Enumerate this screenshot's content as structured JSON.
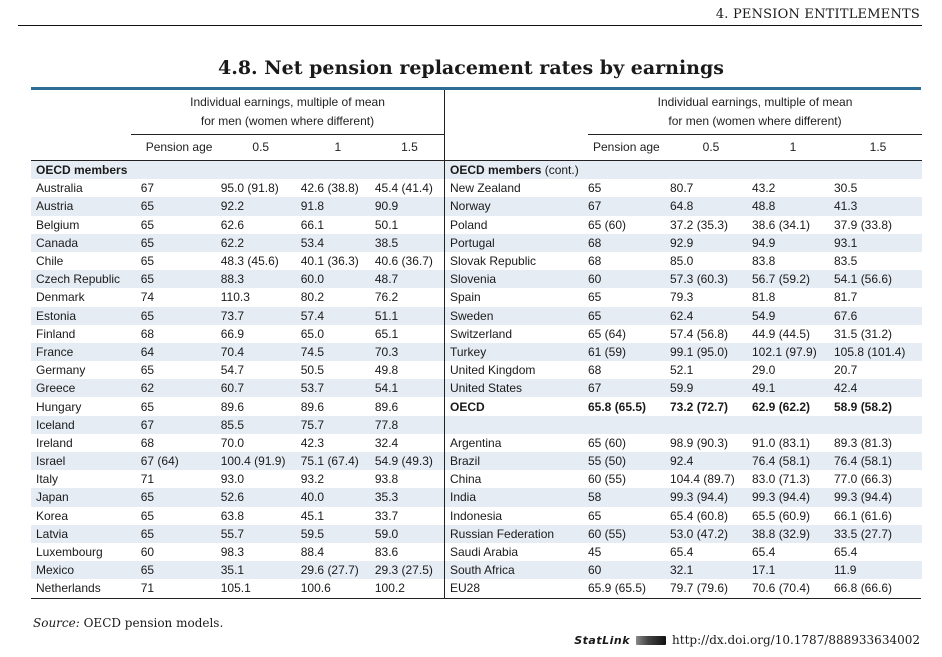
{
  "header": {
    "chapter": "4.  PENSION ENTITLEMENTS"
  },
  "title": "4.8.  Net pension replacement rates by earnings",
  "table": {
    "earnings_header_line1": "Individual earnings, multiple of mean",
    "earnings_header_line2": "for men (women where different)",
    "columns": [
      "Pension age",
      "0.5",
      "1",
      "1.5"
    ],
    "left": {
      "group": "OECD members",
      "rows": [
        [
          "Australia",
          "67",
          "95.0 (91.8)",
          "42.6 (38.8)",
          "45.4 (41.4)"
        ],
        [
          "Austria",
          "65",
          "92.2",
          "91.8",
          "90.9"
        ],
        [
          "Belgium",
          "65",
          "62.6",
          "66.1",
          "50.1"
        ],
        [
          "Canada",
          "65",
          "62.2",
          "53.4",
          "38.5"
        ],
        [
          "Chile",
          "65",
          "48.3 (45.6)",
          "40.1 (36.3)",
          "40.6 (36.7)"
        ],
        [
          "Czech Republic",
          "65",
          "88.3",
          "60.0",
          "48.7"
        ],
        [
          "Denmark",
          "74",
          "110.3",
          "80.2",
          "76.2"
        ],
        [
          "Estonia",
          "65",
          "73.7",
          "57.4",
          "51.1"
        ],
        [
          "Finland",
          "68",
          "66.9",
          "65.0",
          "65.1"
        ],
        [
          "France",
          "64",
          "70.4",
          "74.5",
          "70.3"
        ],
        [
          "Germany",
          "65",
          "54.7",
          "50.5",
          "49.8"
        ],
        [
          "Greece",
          "62",
          "60.7",
          "53.7",
          "54.1"
        ],
        [
          "Hungary",
          "65",
          "89.6",
          "89.6",
          "89.6"
        ],
        [
          "Iceland",
          "67",
          "85.5",
          "75.7",
          "77.8"
        ],
        [
          "Ireland",
          "68",
          "70.0",
          "42.3",
          "32.4"
        ],
        [
          "Israel",
          "67 (64)",
          "100.4 (91.9)",
          "75.1 (67.4)",
          "54.9 (49.3)"
        ],
        [
          "Italy",
          "71",
          "93.0",
          "93.2",
          "93.8"
        ],
        [
          "Japan",
          "65",
          "52.6",
          "40.0",
          "35.3"
        ],
        [
          "Korea",
          "65",
          "63.8",
          "45.1",
          "33.7"
        ],
        [
          "Latvia",
          "65",
          "55.7",
          "59.5",
          "59.0"
        ],
        [
          "Luxembourg",
          "60",
          "98.3",
          "88.4",
          "83.6"
        ],
        [
          "Mexico",
          "65",
          "35.1",
          "29.6 (27.7)",
          "29.3 (27.5)"
        ],
        [
          "Netherlands",
          "71",
          "105.1",
          "100.6",
          "100.2"
        ]
      ]
    },
    "right": {
      "group": "OECD members",
      "group_suffix": " (cont.)",
      "rows": [
        [
          "New Zealand",
          "65",
          "80.7",
          "43.2",
          "30.5"
        ],
        [
          "Norway",
          "67",
          "64.8",
          "48.8",
          "41.3"
        ],
        [
          "Poland",
          "65 (60)",
          "37.2 (35.3)",
          "38.6 (34.1)",
          "37.9 (33.8)"
        ],
        [
          "Portugal",
          "68",
          "92.9",
          "94.9",
          "93.1"
        ],
        [
          "Slovak Republic",
          "68",
          "85.0",
          "83.8",
          "83.5"
        ],
        [
          "Slovenia",
          "60",
          "57.3 (60.3)",
          "56.7 (59.2)",
          "54.1 (56.6)"
        ],
        [
          "Spain",
          "65",
          "79.3",
          "81.8",
          "81.7"
        ],
        [
          "Sweden",
          "65",
          "62.4",
          "54.9",
          "67.6"
        ],
        [
          "Switzerland",
          "65 (64)",
          "57.4 (56.8)",
          "44.9 (44.5)",
          "31.5 (31.2)"
        ],
        [
          "Turkey",
          "61 (59)",
          "99.1 (95.0)",
          "102.1 (97.9)",
          "105.8 (101.4)"
        ],
        [
          "United Kingdom",
          "68",
          "52.1",
          "29.0",
          "20.7"
        ],
        [
          "United States",
          "67",
          "59.9",
          "49.1",
          "42.4"
        ],
        [
          "OECD",
          "65.8 (65.5)",
          "73.2 (72.7)",
          "62.9 (62.2)",
          "58.9 (58.2)"
        ],
        [
          "",
          "",
          "",
          "",
          ""
        ],
        [
          "Argentina",
          "65 (60)",
          "98.9 (90.3)",
          "91.0 (83.1)",
          "89.3 (81.3)"
        ],
        [
          "Brazil",
          "55 (50)",
          "92.4",
          "76.4 (58.1)",
          "76.4 (58.1)"
        ],
        [
          "China",
          "60 (55)",
          "104.4 (89.7)",
          "83.0 (71.3)",
          "77.0 (66.3)"
        ],
        [
          "India",
          "58",
          "99.3 (94.4)",
          "99.3 (94.4)",
          "99.3 (94.4)"
        ],
        [
          "Indonesia",
          "65",
          "65.4 (60.8)",
          "65.5 (60.9)",
          "66.1 (61.6)"
        ],
        [
          "Russian Federation",
          "60 (55)",
          "53.0 (47.2)",
          "38.8 (32.9)",
          "33.5 (27.7)"
        ],
        [
          "Saudi Arabia",
          "45",
          "65.4",
          "65.4",
          "65.4"
        ],
        [
          "South Africa",
          "60",
          "32.1",
          "17.1",
          "11.9"
        ],
        [
          "EU28",
          "65.9 (65.5)",
          "79.7 (79.6)",
          "70.6 (70.4)",
          "66.8 (66.6)"
        ]
      ],
      "bold_row_index": 12
    }
  },
  "footer": {
    "source_label": "Source:",
    "source_text": " OECD pension models.",
    "statlink_label": "StatLink",
    "statlink_url": "http://dx.doi.org/10.1787/888933634002"
  },
  "colors": {
    "accent_rule": "#2e6e96",
    "row_band": "#e6ecf4"
  }
}
